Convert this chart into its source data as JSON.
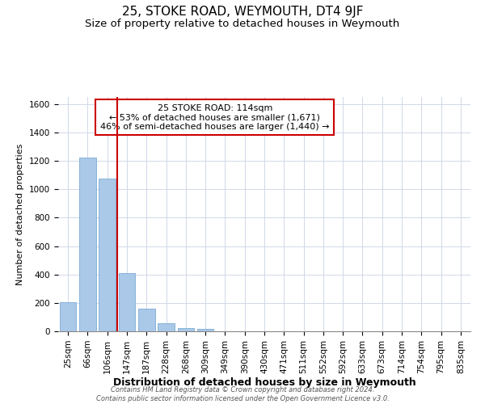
{
  "title": "25, STOKE ROAD, WEYMOUTH, DT4 9JF",
  "subtitle": "Size of property relative to detached houses in Weymouth",
  "xlabel": "Distribution of detached houses by size in Weymouth",
  "ylabel": "Number of detached properties",
  "footer_line1": "Contains HM Land Registry data © Crown copyright and database right 2024.",
  "footer_line2": "Contains public sector information licensed under the Open Government Licence v3.0.",
  "bins": [
    "25sqm",
    "66sqm",
    "106sqm",
    "147sqm",
    "187sqm",
    "228sqm",
    "268sqm",
    "309sqm",
    "349sqm",
    "390sqm",
    "430sqm",
    "471sqm",
    "511sqm",
    "552sqm",
    "592sqm",
    "633sqm",
    "673sqm",
    "714sqm",
    "754sqm",
    "795sqm",
    "835sqm"
  ],
  "values": [
    205,
    1225,
    1075,
    410,
    160,
    55,
    25,
    15,
    0,
    0,
    0,
    0,
    0,
    0,
    0,
    0,
    0,
    0,
    0,
    0
  ],
  "bar_color": "#aac8e8",
  "bar_edge_color": "#7aadd4",
  "vline_color": "#cc0000",
  "vline_x": 2.5,
  "ann_line1": "25 STOKE ROAD: 114sqm",
  "ann_line2": "← 53% of detached houses are smaller (1,671)",
  "ann_line3": "46% of semi-detached houses are larger (1,440) →",
  "ylim": [
    0,
    1650
  ],
  "yticks": [
    0,
    200,
    400,
    600,
    800,
    1000,
    1200,
    1400,
    1600
  ],
  "grid_color": "#d0d8e8",
  "background_color": "#ffffff",
  "title_fontsize": 11,
  "subtitle_fontsize": 9.5,
  "xlabel_fontsize": 9,
  "ylabel_fontsize": 8,
  "tick_fontsize": 7.5,
  "ann_fontsize": 8,
  "footer_fontsize": 6
}
